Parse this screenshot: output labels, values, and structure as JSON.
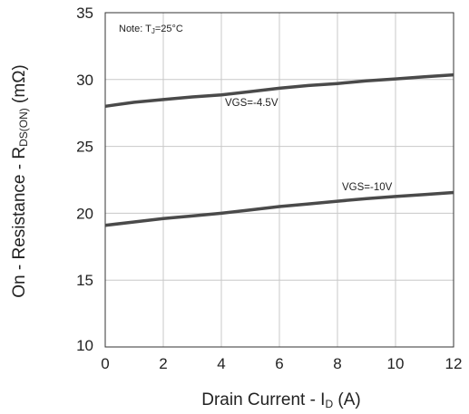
{
  "chart_data": {
    "type": "line",
    "title": "",
    "xlabel": "Drain Current - I_D (A)",
    "xlabel_parts": {
      "main": "Drain Current - I",
      "sub": "D",
      "tail": " (A)"
    },
    "ylabel": "On - Resistance - R_DS(ON) (mΩ)",
    "ylabel_parts": {
      "main": "On - Resistance - R",
      "sub": "DS(ON)",
      "tail": " (mΩ)"
    },
    "xlim": [
      0,
      12
    ],
    "ylim": [
      10,
      35
    ],
    "xticks": [
      "0",
      "2",
      "4",
      "6",
      "8",
      "10",
      "12"
    ],
    "yticks": [
      "10",
      "15",
      "20",
      "25",
      "30",
      "35"
    ],
    "grid": true,
    "note": {
      "prefix": "Note: T",
      "sub": "J",
      "suffix": "=25°C"
    },
    "series": [
      {
        "name": "VGS=-4.5V",
        "x": [
          0,
          1,
          2,
          3,
          4,
          5,
          6,
          7,
          8,
          9,
          10,
          11,
          12
        ],
        "y": [
          28.0,
          28.3,
          28.5,
          28.7,
          28.85,
          29.1,
          29.35,
          29.55,
          29.7,
          29.9,
          30.05,
          30.2,
          30.35
        ]
      },
      {
        "name": "VGS=-10V",
        "x": [
          0,
          1,
          2,
          3,
          4,
          5,
          6,
          7,
          8,
          9,
          10,
          11,
          12
        ],
        "y": [
          19.1,
          19.35,
          19.6,
          19.8,
          20.0,
          20.25,
          20.5,
          20.7,
          20.9,
          21.1,
          21.25,
          21.4,
          21.55
        ]
      }
    ],
    "colors": {
      "line": "#4a4a4a",
      "grid": "#c8c8c8",
      "frame": "#333333"
    }
  }
}
